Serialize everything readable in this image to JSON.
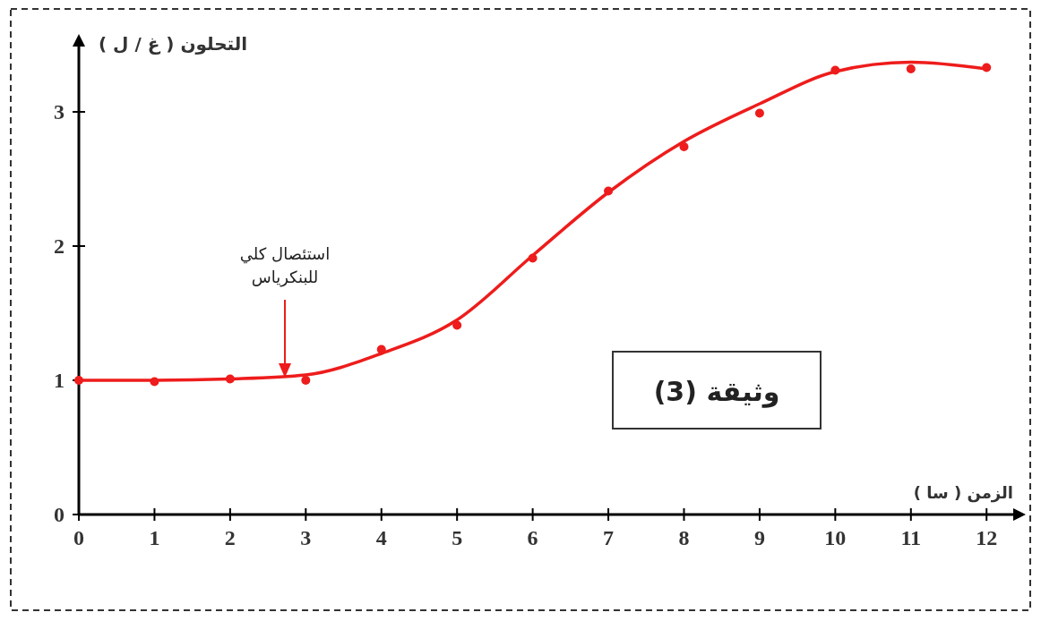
{
  "chart_data": {
    "type": "scatter",
    "title": "وثيقة (3)",
    "xlabel": "الزمن ( سا )",
    "ylabel": "التحلون ( غ / ل )",
    "annotations": [
      "استئصال كلي للبنكرياس"
    ],
    "xlim": [
      0,
      12.4
    ],
    "ylim": [
      0,
      3.5
    ],
    "xticks": [
      0,
      1,
      2,
      3,
      4,
      5,
      6,
      7,
      8,
      9,
      10,
      11,
      12
    ],
    "yticks": [
      0,
      1,
      2,
      3
    ],
    "grid": false,
    "series": [
      {
        "type": "line",
        "color": "#ee1c1c",
        "marker": "none",
        "x": [
          0,
          1,
          2,
          3,
          4,
          5,
          6,
          7,
          8,
          9,
          10,
          11,
          12
        ],
        "values": [
          1.0,
          1.0,
          1.01,
          1.04,
          1.2,
          1.45,
          1.93,
          2.4,
          2.78,
          3.06,
          3.3,
          3.37,
          3.32
        ]
      },
      {
        "color": "#ee1c1c",
        "marker": "circle",
        "x": [
          0,
          1,
          2,
          3,
          4,
          5,
          6,
          7,
          8,
          9,
          10,
          11,
          12
        ],
        "values": [
          1.0,
          0.99,
          1.01,
          1.0,
          1.23,
          1.41,
          1.91,
          2.41,
          2.74,
          2.99,
          3.31,
          3.32,
          3.33
        ]
      }
    ]
  }
}
